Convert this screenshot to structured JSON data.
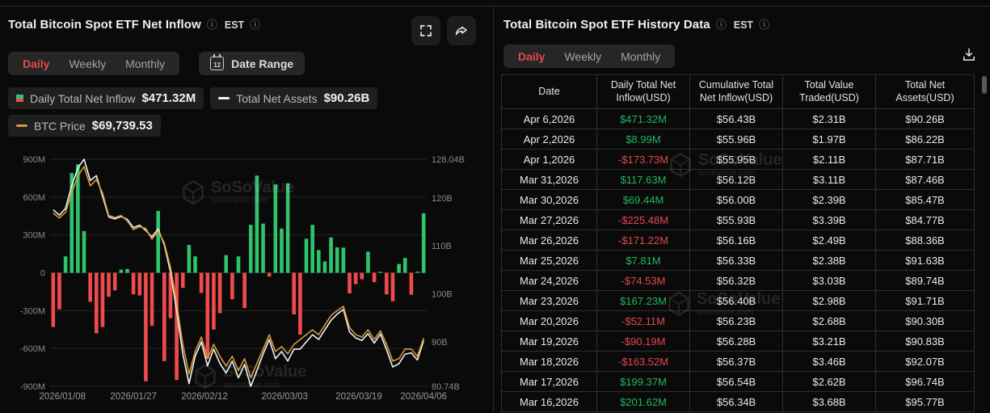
{
  "icons": {
    "info_glyph": "ⓘ",
    "calendar_day": "12"
  },
  "watermark": {
    "name": "SoSoValue",
    "domain": "sosovalue.com"
  },
  "left_panel": {
    "title": "Total Bitcoin Spot ETF Net Inflow",
    "timezone": "EST",
    "tabs": [
      "Daily",
      "Weekly",
      "Monthly"
    ],
    "active_tab": "Daily",
    "date_range_label": "Date Range",
    "legend": [
      {
        "label": "Daily Total Net Inflow",
        "value": "$471.32M",
        "icon": "split-square"
      },
      {
        "label": "Total Net Assets",
        "value": "$90.26B",
        "icon": "dash",
        "color": "#f2f2f2"
      },
      {
        "label": "BTC Price",
        "value": "$69,739.53",
        "icon": "dash",
        "color": "#d79a3c"
      }
    ]
  },
  "chart_data": {
    "type": "bar",
    "title": "Total Bitcoin Spot ETF Net Inflow",
    "x_axis_labels": [
      "2026/01/08",
      "2026/01/27",
      "2026/02/12",
      "2026/03/03",
      "2026/03/19",
      "2026/04/06"
    ],
    "left_axis": {
      "unit": "M (USD)",
      "min": -900,
      "max": 900,
      "ticks": [
        {
          "label": "900M",
          "value": 900
        },
        {
          "label": "600M",
          "value": 600
        },
        {
          "label": "300M",
          "value": 300
        },
        {
          "label": "0",
          "value": 0
        },
        {
          "label": "-300M",
          "value": -300
        },
        {
          "label": "-600M",
          "value": -600
        },
        {
          "label": "-900M",
          "value": -900
        }
      ]
    },
    "right_axis": {
      "unit": "B (USD)",
      "min": 80.74,
      "max": 128.04,
      "ticks": [
        {
          "label": "128.04B",
          "value": 128.04
        },
        {
          "label": "120B",
          "value": 120
        },
        {
          "label": "110B",
          "value": 110
        },
        {
          "label": "100B",
          "value": 100
        },
        {
          "label": "90B",
          "value": 90
        },
        {
          "label": "80.74B",
          "value": 80.74
        }
      ]
    },
    "grid": true,
    "legend_position": "top",
    "series": [
      {
        "name": "Daily Total Net Inflow",
        "type": "bar",
        "axis": "left",
        "unit": "M",
        "pos_color": "#2fc46c",
        "neg_color": "#f04b4b",
        "values": [
          -430,
          -290,
          130,
          790,
          860,
          330,
          -230,
          -480,
          -430,
          -190,
          -140,
          25,
          30,
          -170,
          -180,
          -860,
          -420,
          490,
          -700,
          -360,
          -850,
          -120,
          220,
          130,
          -160,
          -680,
          -450,
          -320,
          140,
          -210,
          130,
          -280,
          380,
          770,
          390,
          -30,
          700,
          350,
          710,
          -330,
          -490,
          270,
          380,
          180,
          90,
          280,
          201.62,
          199.37,
          -163.52,
          -90.19,
          -52.11,
          167.23,
          -74.53,
          7.81,
          -171.22,
          -225.48,
          69.44,
          117.63,
          -173.73,
          8.99,
          471.32
        ]
      },
      {
        "name": "Total Net Assets",
        "type": "line",
        "axis": "right",
        "unit": "B",
        "color": "#f2f2f2",
        "values": [
          117.5,
          116.4,
          117.8,
          122.5,
          126.2,
          128.04,
          123.6,
          124.6,
          120.3,
          116.0,
          115.6,
          116.1,
          115.5,
          113.8,
          114.3,
          113.2,
          111.9,
          113.5,
          110.2,
          104.5,
          96.5,
          87.5,
          81.3,
          87.0,
          90.0,
          85.0,
          88.5,
          85.5,
          83.5,
          86.0,
          82.5,
          85.3,
          80.74,
          84.0,
          87.5,
          90.5,
          86.5,
          88.0,
          86.0,
          88.5,
          88.5,
          90.0,
          91.5,
          90.5,
          92.5,
          94.5,
          95.77,
          96.74,
          92.07,
          90.83,
          90.3,
          91.71,
          89.74,
          91.63,
          88.36,
          84.77,
          85.47,
          87.46,
          87.71,
          86.22,
          90.26
        ]
      },
      {
        "name": "BTC Price",
        "type": "line",
        "axis": "right-equivalent",
        "legend_value": "$69,739.53",
        "color": "#d79a3c",
        "values": [
          116.8,
          115.8,
          117.0,
          121.0,
          124.5,
          126.5,
          122.5,
          123.8,
          121.0,
          116.3,
          115.9,
          116.3,
          115.2,
          113.4,
          114.0,
          113.6,
          111.4,
          113.0,
          110.6,
          105.5,
          98.0,
          89.5,
          83.3,
          88.0,
          91.0,
          86.5,
          89.5,
          87.0,
          85.0,
          87.0,
          84.0,
          86.5,
          82.5,
          85.5,
          88.5,
          91.5,
          88.0,
          89.0,
          87.5,
          89.5,
          90.5,
          91.5,
          92.5,
          91.5,
          93.5,
          95.5,
          96.5,
          97.4,
          93.0,
          91.5,
          91.0,
          92.5,
          90.5,
          92.3,
          89.5,
          86.0,
          86.5,
          88.5,
          88.5,
          87.0,
          90.8
        ]
      }
    ]
  },
  "right_panel": {
    "title": "Total Bitcoin Spot ETF History Data",
    "timezone": "EST",
    "tabs": [
      "Daily",
      "Weekly",
      "Monthly"
    ],
    "active_tab": "Daily",
    "table": {
      "headers": [
        "Date",
        "Daily Total Net Inflow(USD)",
        "Cumulative Total Net Inflow(USD)",
        "Total Value Traded(USD)",
        "Total Net Assets(USD)"
      ],
      "rows": [
        {
          "date": "Apr 6,2026",
          "daily_inflow": "$471.32M",
          "cumulative_inflow": "$56.43B",
          "value_traded": "$2.31B",
          "net_assets": "$90.26B"
        },
        {
          "date": "Apr 2,2026",
          "daily_inflow": "$8.99M",
          "cumulative_inflow": "$55.96B",
          "value_traded": "$1.97B",
          "net_assets": "$86.22B"
        },
        {
          "date": "Apr 1,2026",
          "daily_inflow": "-$173.73M",
          "cumulative_inflow": "$55.95B",
          "value_traded": "$2.11B",
          "net_assets": "$87.71B"
        },
        {
          "date": "Mar 31,2026",
          "daily_inflow": "$117.63M",
          "cumulative_inflow": "$56.12B",
          "value_traded": "$3.11B",
          "net_assets": "$87.46B"
        },
        {
          "date": "Mar 30,2026",
          "daily_inflow": "$69.44M",
          "cumulative_inflow": "$56.00B",
          "value_traded": "$2.39B",
          "net_assets": "$85.47B"
        },
        {
          "date": "Mar 27,2026",
          "daily_inflow": "-$225.48M",
          "cumulative_inflow": "$55.93B",
          "value_traded": "$3.39B",
          "net_assets": "$84.77B"
        },
        {
          "date": "Mar 26,2026",
          "daily_inflow": "-$171.22M",
          "cumulative_inflow": "$56.16B",
          "value_traded": "$2.49B",
          "net_assets": "$88.36B"
        },
        {
          "date": "Mar 25,2026",
          "daily_inflow": "$7.81M",
          "cumulative_inflow": "$56.33B",
          "value_traded": "$2.38B",
          "net_assets": "$91.63B"
        },
        {
          "date": "Mar 24,2026",
          "daily_inflow": "-$74.53M",
          "cumulative_inflow": "$56.32B",
          "value_traded": "$3.03B",
          "net_assets": "$89.74B"
        },
        {
          "date": "Mar 23,2026",
          "daily_inflow": "$167.23M",
          "cumulative_inflow": "$56.40B",
          "value_traded": "$2.98B",
          "net_assets": "$91.71B"
        },
        {
          "date": "Mar 20,2026",
          "daily_inflow": "-$52.11M",
          "cumulative_inflow": "$56.23B",
          "value_traded": "$2.68B",
          "net_assets": "$90.30B"
        },
        {
          "date": "Mar 19,2026",
          "daily_inflow": "-$90.19M",
          "cumulative_inflow": "$56.28B",
          "value_traded": "$3.21B",
          "net_assets": "$90.83B"
        },
        {
          "date": "Mar 18,2026",
          "daily_inflow": "-$163.52M",
          "cumulative_inflow": "$56.37B",
          "value_traded": "$3.46B",
          "net_assets": "$92.07B"
        },
        {
          "date": "Mar 17,2026",
          "daily_inflow": "$199.37M",
          "cumulative_inflow": "$56.54B",
          "value_traded": "$2.62B",
          "net_assets": "$96.74B"
        },
        {
          "date": "Mar 16,2026",
          "daily_inflow": "$201.62M",
          "cumulative_inflow": "$56.34B",
          "value_traded": "$3.68B",
          "net_assets": "$95.77B"
        }
      ]
    }
  }
}
